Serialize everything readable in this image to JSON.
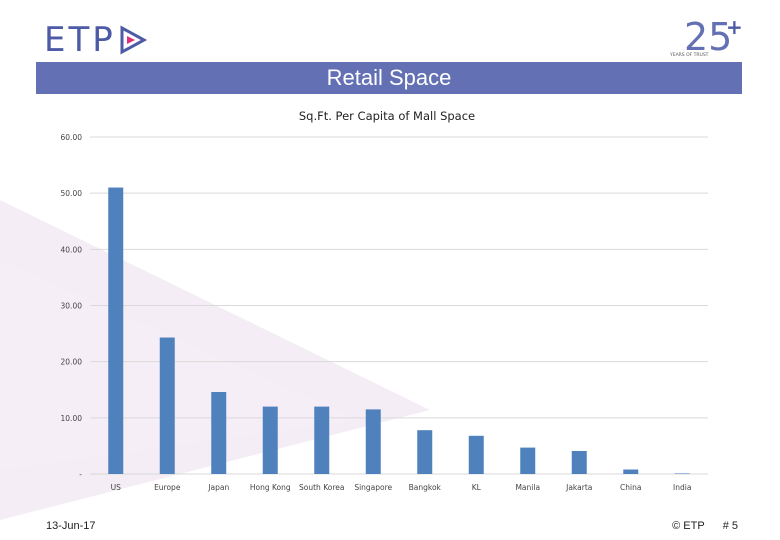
{
  "header": {
    "logo_text": "ETP",
    "anniversary_number": "25",
    "anniversary_plus": "+",
    "anniversary_caption": "YEARS OF TRUST",
    "banner_title": "Retail Space"
  },
  "footer": {
    "date": "13-Jun-17",
    "copyright": "© ETP",
    "page": "# 5"
  },
  "colors": {
    "bar": "#4f81bd",
    "banner": "#6470b4",
    "logo": "#4d5aa6",
    "accent": "#e0307a"
  },
  "chart_data": {
    "type": "bar",
    "title": "Sq.Ft. Per Capita of Mall Space",
    "categories": [
      "US",
      "Europe",
      "Japan",
      "Hong Kong",
      "South Korea",
      "Singapore",
      "Bangkok",
      "KL",
      "Manila",
      "Jakarta",
      "China",
      "India"
    ],
    "values": [
      51.0,
      24.3,
      14.6,
      12.0,
      12.0,
      11.5,
      7.8,
      6.8,
      4.7,
      4.1,
      0.8,
      0.1
    ],
    "ylim": [
      0,
      60
    ],
    "yticks": [
      0,
      10,
      20,
      30,
      40,
      50,
      60
    ],
    "ytick_labels": [
      "-",
      "10.00",
      "20.00",
      "30.00",
      "40.00",
      "50.00",
      "60.00"
    ],
    "grid": true,
    "xlabel": "",
    "ylabel": ""
  }
}
